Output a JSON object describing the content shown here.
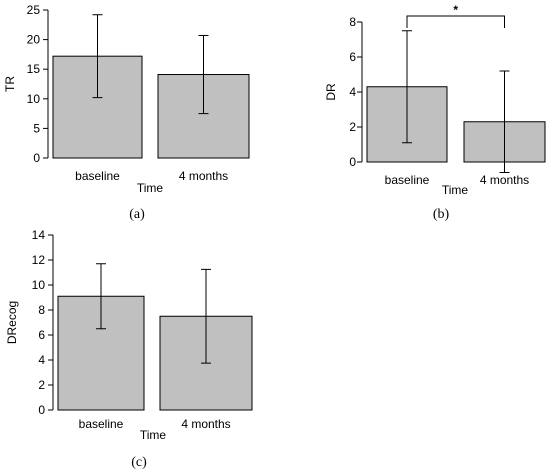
{
  "figure": {
    "colors": {
      "bar_fill": "#c0c0c0",
      "stroke": "#000000",
      "background": "#ffffff"
    }
  },
  "chart_data": [
    {
      "type": "bar",
      "caption": "(a)",
      "xlabel": "Time",
      "ylabel": "TR",
      "categories": [
        "baseline",
        "4 months"
      ],
      "values": [
        17.2,
        14.1
      ],
      "error": [
        7.0,
        6.6
      ],
      "ylim": [
        0,
        25
      ],
      "yticks": [
        0,
        5,
        10,
        15,
        20,
        25
      ],
      "grid": false,
      "significance": null
    },
    {
      "type": "bar",
      "caption": "(b)",
      "xlabel": "Time",
      "ylabel": "DR",
      "categories": [
        "baseline",
        "4 months"
      ],
      "values": [
        4.3,
        2.3
      ],
      "error": [
        3.2,
        2.9
      ],
      "ylim": [
        0,
        8
      ],
      "yticks": [
        0,
        2,
        4,
        6,
        8
      ],
      "grid": false,
      "significance": {
        "pair": [
          0,
          1
        ],
        "label": "*"
      }
    },
    {
      "type": "bar",
      "caption": "(c)",
      "xlabel": "Time",
      "ylabel": "DRecog",
      "categories": [
        "baseline",
        "4 months"
      ],
      "values": [
        9.1,
        7.5
      ],
      "error": [
        2.6,
        3.75
      ],
      "ylim": [
        0,
        14
      ],
      "yticks": [
        0,
        2,
        4,
        6,
        8,
        10,
        12,
        14
      ],
      "grid": false,
      "significance": null
    }
  ]
}
